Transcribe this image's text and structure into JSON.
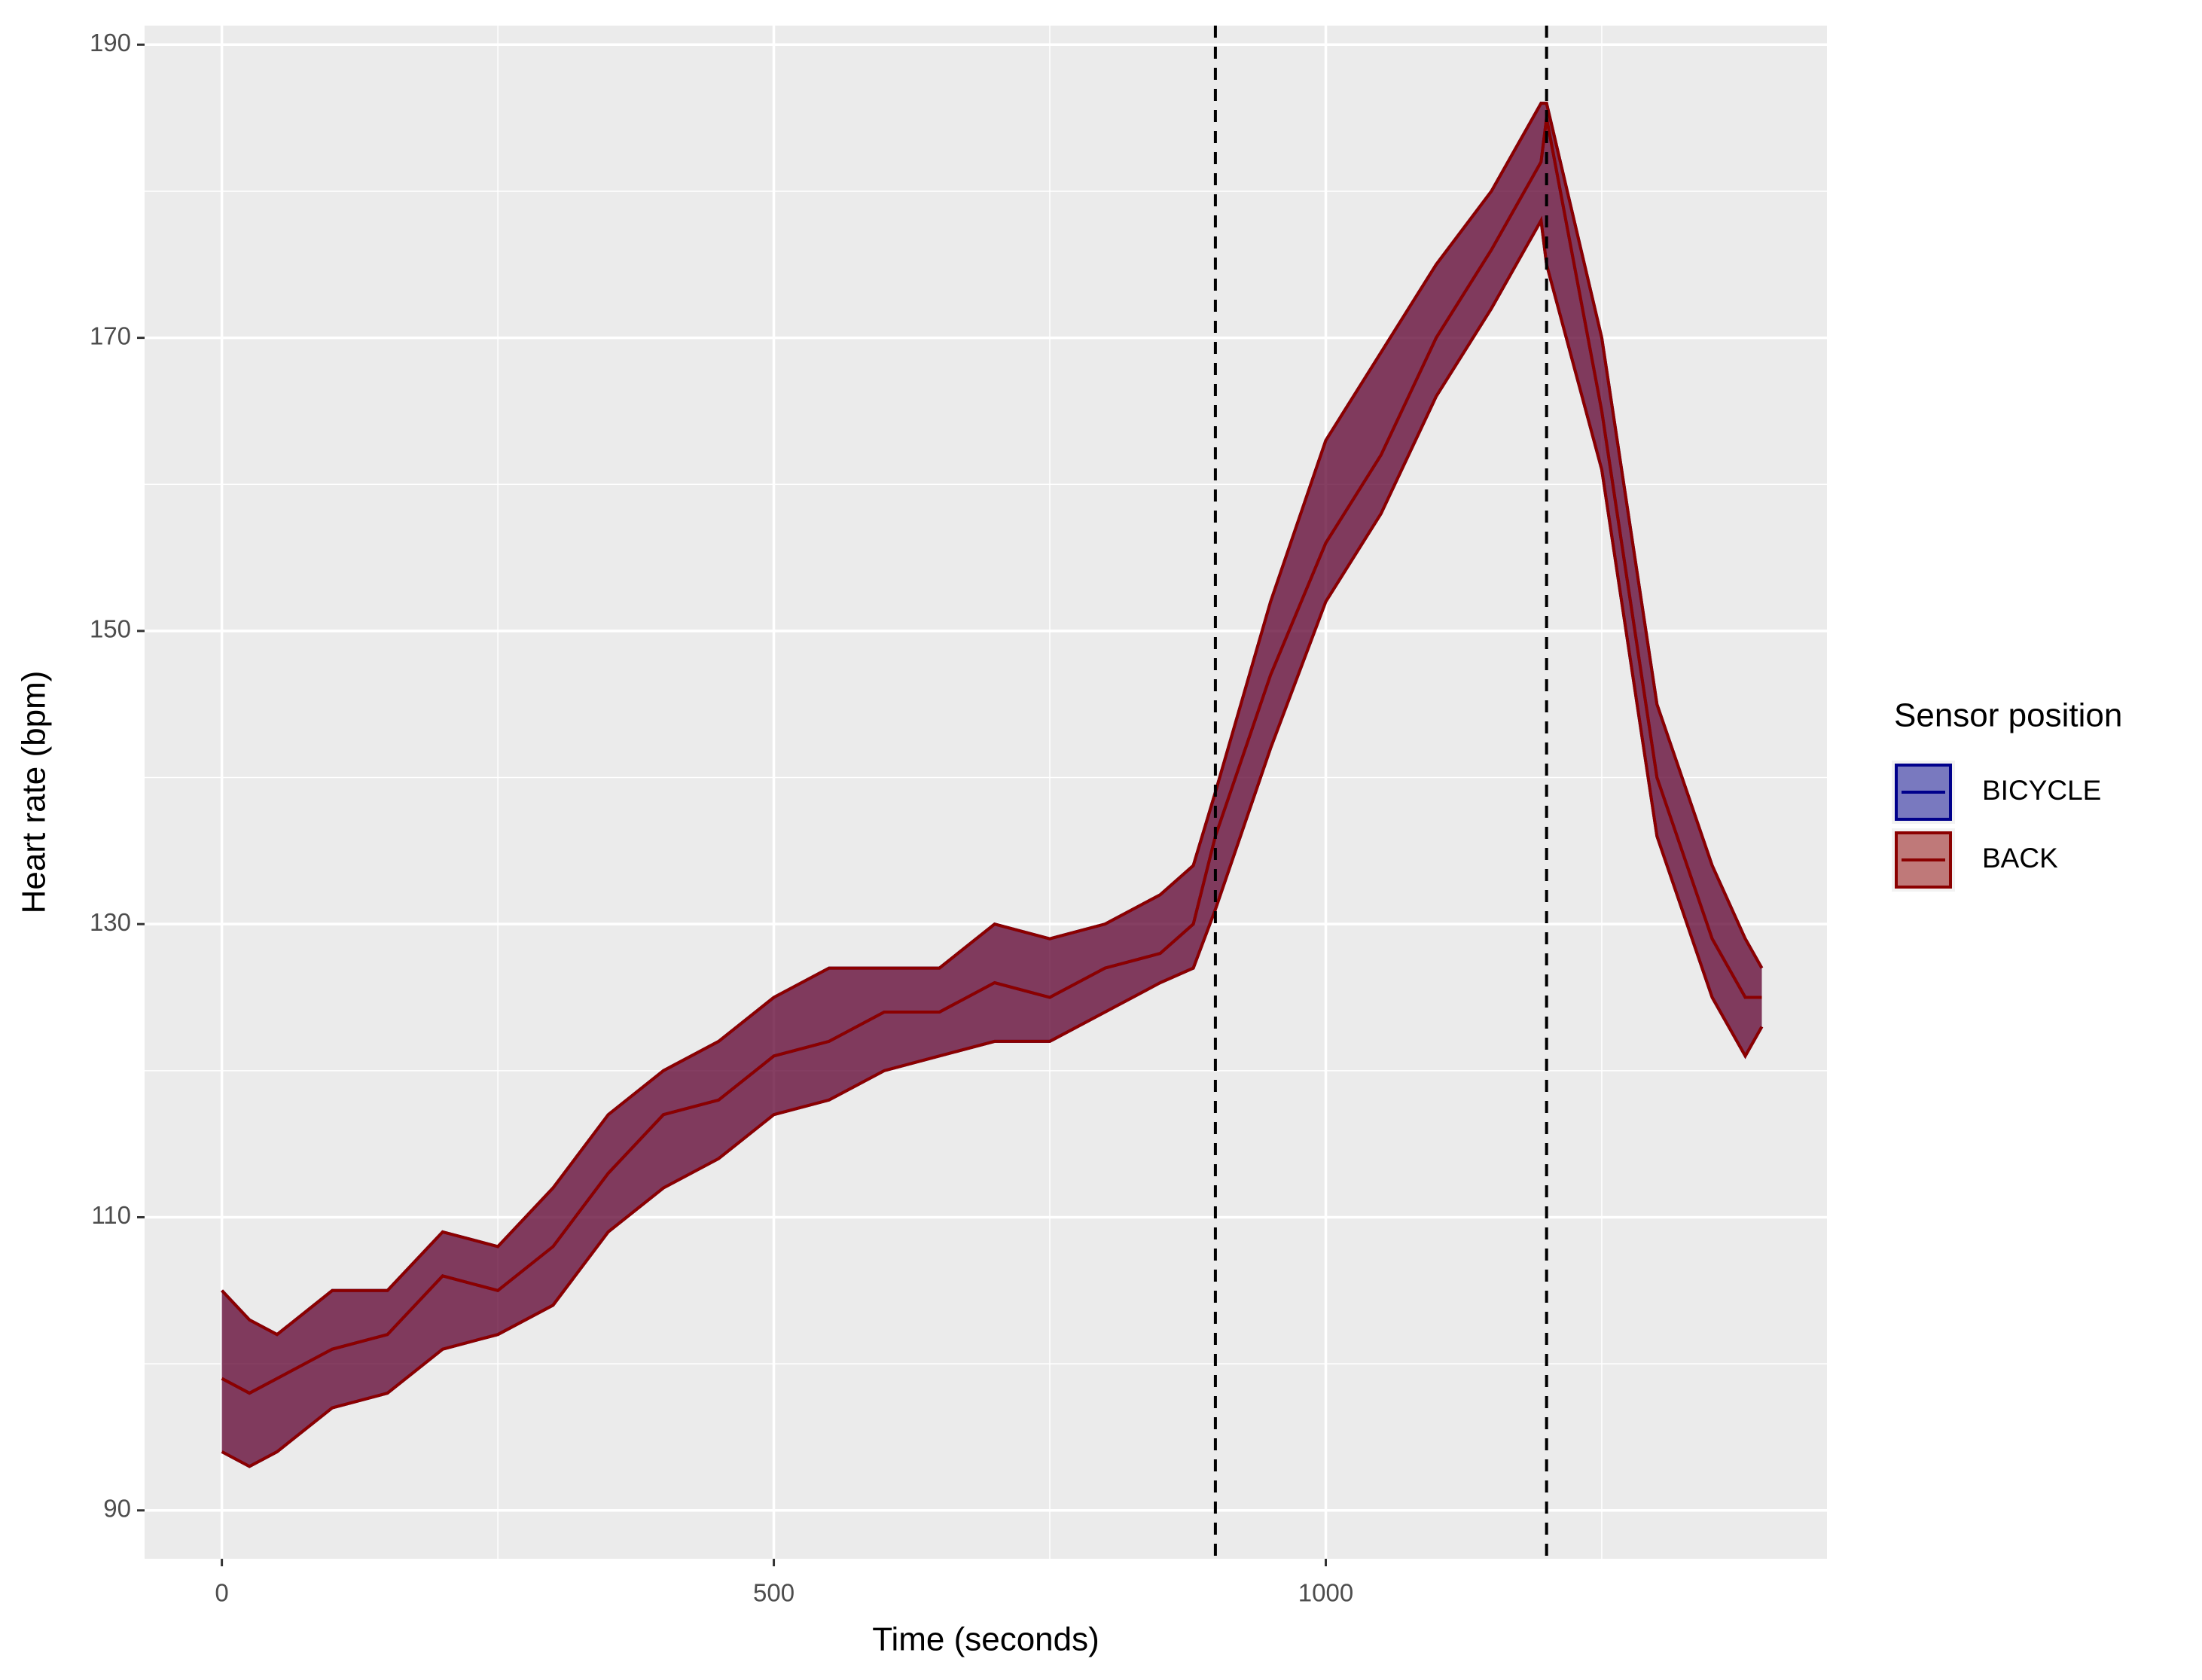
{
  "chart_data": {
    "type": "ribbon-line",
    "x_label": "Time (seconds)",
    "y_label": "Heart rate (bpm)",
    "legend_title": "Sensor position",
    "x": [
      0,
      25,
      50,
      100,
      150,
      200,
      250,
      300,
      350,
      400,
      450,
      500,
      550,
      600,
      650,
      700,
      750,
      800,
      850,
      880,
      900,
      950,
      1000,
      1050,
      1100,
      1150,
      1195,
      1200,
      1250,
      1300,
      1350,
      1380,
      1395
    ],
    "series": [
      {
        "name": "BICYCLE",
        "color": "#00008B",
        "values": [
          99,
          98,
          99,
          101,
          102,
          106,
          105,
          108,
          113,
          117,
          118,
          121,
          122,
          124,
          124,
          126,
          125,
          127,
          128,
          130,
          136,
          147,
          156,
          162,
          170,
          176,
          182,
          185,
          165,
          140,
          129,
          125,
          125
        ],
        "lower": [
          94,
          93,
          94,
          97,
          98,
          101,
          102,
          104,
          109,
          112,
          114,
          117,
          118,
          120,
          121,
          122,
          122,
          124,
          126,
          127,
          131,
          142,
          152,
          158,
          166,
          172,
          178,
          175,
          161,
          136,
          125,
          121,
          123
        ],
        "upper": [
          105,
          103,
          102,
          105,
          105,
          109,
          108,
          112,
          117,
          120,
          122,
          125,
          127,
          127,
          127,
          130,
          129,
          130,
          132,
          134,
          139,
          152,
          163,
          169,
          175,
          180,
          186,
          186,
          170,
          145,
          134,
          129,
          127
        ]
      },
      {
        "name": "BACK",
        "color": "#8B0000",
        "values": [
          99,
          98,
          99,
          101,
          102,
          106,
          105,
          108,
          113,
          117,
          118,
          121,
          122,
          124,
          124,
          126,
          125,
          127,
          128,
          130,
          136,
          147,
          156,
          162,
          170,
          176,
          182,
          185,
          165,
          140,
          129,
          125,
          125
        ],
        "lower": [
          94,
          93,
          94,
          97,
          98,
          101,
          102,
          104,
          109,
          112,
          114,
          117,
          118,
          120,
          121,
          122,
          122,
          124,
          126,
          127,
          131,
          142,
          152,
          158,
          166,
          172,
          178,
          175,
          161,
          136,
          125,
          121,
          123
        ],
        "upper": [
          105,
          103,
          102,
          105,
          105,
          109,
          108,
          112,
          117,
          120,
          122,
          125,
          127,
          127,
          127,
          130,
          129,
          130,
          132,
          134,
          139,
          152,
          163,
          169,
          175,
          180,
          186,
          186,
          170,
          145,
          134,
          129,
          127
        ]
      }
    ],
    "vlines": [
      900,
      1200
    ],
    "xlim": [
      -70,
      1454
    ],
    "xticks": [
      0,
      500,
      1000
    ],
    "xminor": [
      250,
      750,
      1250
    ],
    "ylim": [
      86.7,
      191.3
    ],
    "yticks": [
      90,
      110,
      130,
      150,
      170,
      190
    ],
    "yminor": [
      100,
      120,
      140,
      160,
      180
    ],
    "grid": true
  }
}
